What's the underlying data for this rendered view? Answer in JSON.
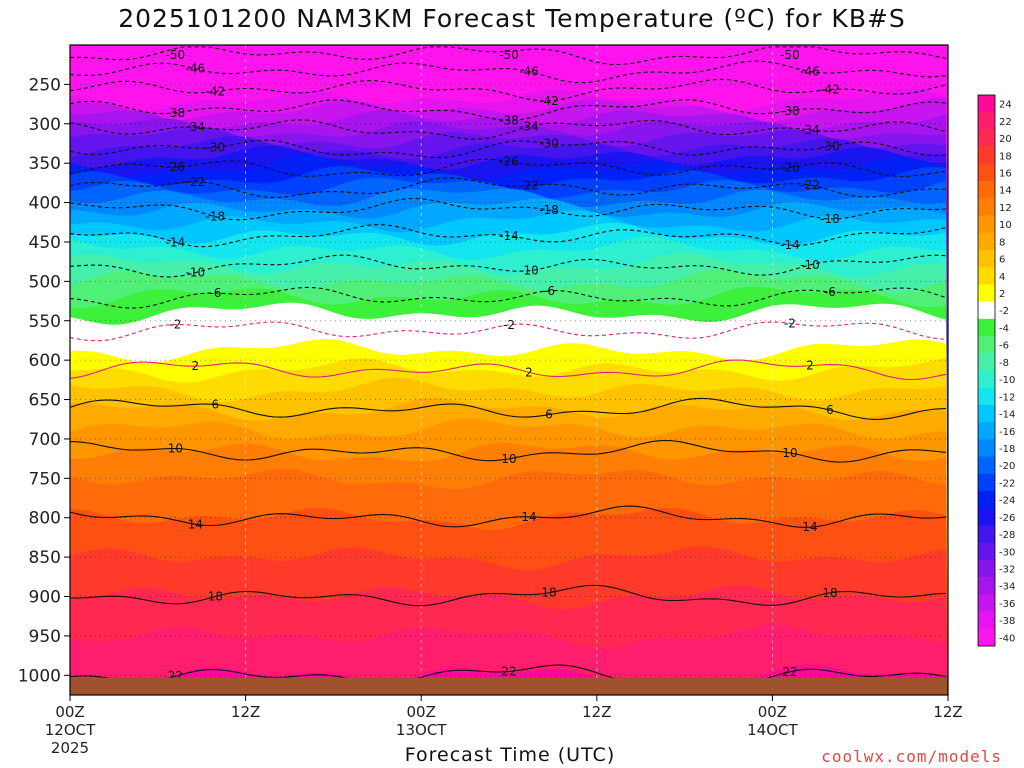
{
  "chart_data": {
    "type": "heatmap",
    "title": "2025101200 NAM3KM Forecast Temperature (ºC) for KB#S",
    "xlabel": "Forecast Time (UTC)",
    "ylabel": "",
    "credit": "coolwx.com/models",
    "forecast_hours": [
      0,
      48
    ],
    "x_ticks": [
      {
        "hour": 0,
        "label": "00Z",
        "sub": "12OCT",
        "sub2": "2025"
      },
      {
        "hour": 12,
        "label": "12Z",
        "sub": "",
        "sub2": ""
      },
      {
        "hour": 24,
        "label": "00Z",
        "sub": "13OCT",
        "sub2": ""
      },
      {
        "hour": 36,
        "label": "12Z",
        "sub": "",
        "sub2": ""
      },
      {
        "hour": 48,
        "label": "00Z",
        "sub": "14OCT",
        "sub2": ""
      },
      {
        "hour": 60,
        "label": "12Z",
        "sub": "",
        "sub2": ""
      }
    ],
    "x_range_hours": [
      0,
      60
    ],
    "y_ticks_hpa": [
      250,
      300,
      350,
      400,
      450,
      500,
      550,
      600,
      650,
      700,
      750,
      800,
      850,
      900,
      950,
      1000
    ],
    "y_range_hpa": [
      200,
      1025
    ],
    "colorbar": {
      "levels": [
        "24",
        "22",
        "20",
        "18",
        "16",
        "14",
        "12",
        "10",
        "8",
        "6",
        "4",
        "2",
        "-2",
        "-4",
        "-6",
        "-8",
        "-10",
        "-12",
        "-14",
        "-16",
        "-18",
        "-20",
        "-22",
        "-24",
        "-26",
        "-28",
        "-30",
        "-32",
        "-34",
        "-36",
        "-38",
        "-40"
      ],
      "colors": [
        "#ff0a96",
        "#ff1e6e",
        "#ff2850",
        "#ff3a2a",
        "#ff5014",
        "#ff6a0a",
        "#ff7e06",
        "#ff9600",
        "#ffaa00",
        "#ffc200",
        "#ffdc00",
        "#ffff00",
        "#ffffff",
        "#3cf03c",
        "#50f078",
        "#46f0aa",
        "#2cf0d0",
        "#14e6f0",
        "#00c8ff",
        "#00a8ff",
        "#0088ff",
        "#0064ff",
        "#0040ff",
        "#0020f8",
        "#1a14f0",
        "#4414ee",
        "#6614ee",
        "#8814ee",
        "#a814ee",
        "#c814ee",
        "#e614ee",
        "#ff14ee"
      ]
    },
    "profile_hpa": [
      200,
      250,
      300,
      350,
      400,
      450,
      500,
      550,
      600,
      650,
      700,
      750,
      800,
      850,
      900,
      950,
      1000
    ],
    "profile_temp_c": [
      -52,
      -43,
      -35,
      -27,
      -19,
      -13,
      -8,
      -3,
      1,
      5,
      9,
      12,
      14,
      16,
      18,
      20,
      21
    ],
    "contours": [
      {
        "value": -50,
        "label": "-50"
      },
      {
        "value": -46,
        "label": "-46"
      },
      {
        "value": -42,
        "label": "-42"
      },
      {
        "value": -38,
        "label": "-38"
      },
      {
        "value": -34,
        "label": "-34"
      },
      {
        "value": -30,
        "label": "-30"
      },
      {
        "value": -26,
        "label": "-26"
      },
      {
        "value": -22,
        "label": "-22"
      },
      {
        "value": -18,
        "label": "-18"
      },
      {
        "value": -14,
        "label": "-14"
      },
      {
        "value": -10,
        "label": "-10"
      },
      {
        "value": -6,
        "label": "-6"
      },
      {
        "value": -2,
        "label": "-2"
      },
      {
        "value": 2,
        "label": "2"
      },
      {
        "value": 6,
        "label": "6"
      },
      {
        "value": 10,
        "label": "10"
      },
      {
        "value": 14,
        "label": "14"
      },
      {
        "value": 18,
        "label": "18"
      },
      {
        "value": 22,
        "label": "22"
      }
    ]
  }
}
